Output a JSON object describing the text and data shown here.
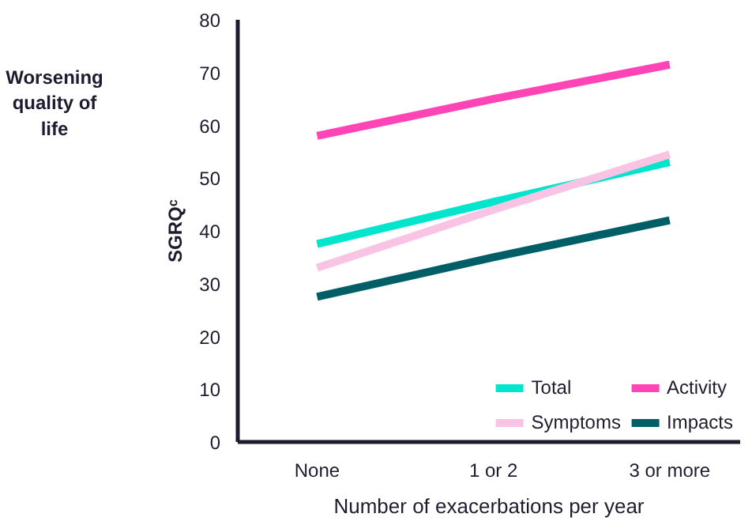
{
  "chart_data": {
    "type": "line",
    "categories": [
      "None",
      "1 or 2",
      "3 or more"
    ],
    "series": [
      {
        "name": "Total",
        "color": "#00e5cc",
        "values": [
          37.5,
          45.5,
          53
        ]
      },
      {
        "name": "Activity",
        "color": "#ff45b5",
        "values": [
          58,
          65,
          71.5
        ]
      },
      {
        "name": "Symptoms",
        "color": "#f9c4e4",
        "values": [
          33,
          44,
          54.5
        ]
      },
      {
        "name": "Impacts",
        "color": "#005f66",
        "values": [
          27.5,
          35,
          42
        ]
      }
    ],
    "ylim": [
      0,
      80
    ],
    "yticks": [
      0,
      10,
      20,
      30,
      40,
      50,
      60,
      70,
      80
    ],
    "xlabel": "Number of exacerbations per year",
    "ylabel": "SGRQᶜ",
    "annotations": [
      "Worsening quality of life"
    ],
    "legend": "bottom right",
    "grid": false,
    "marker": "none",
    "line_style": "solid"
  }
}
